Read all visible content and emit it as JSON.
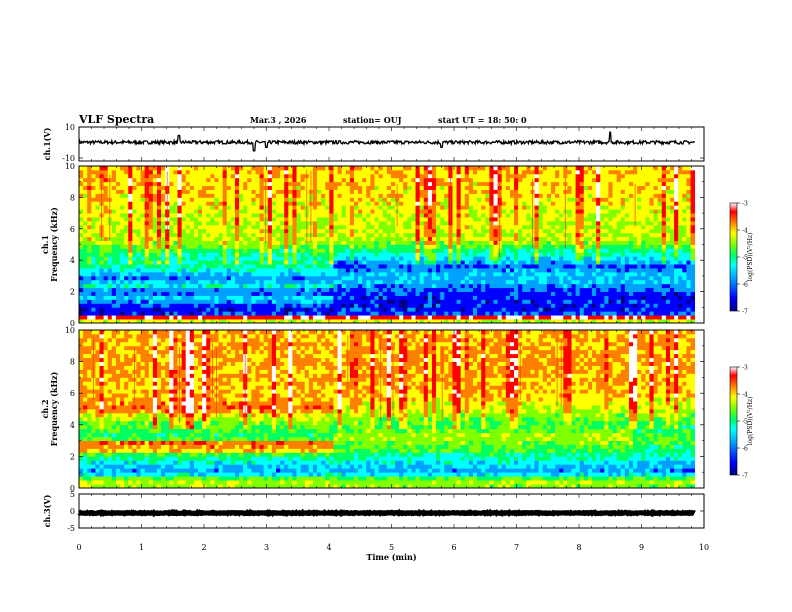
{
  "header": {
    "title": "VLF Spectra",
    "date": "Mar.3  , 2026",
    "station": "station= OUJ",
    "start_time": "start  UT  =   18: 50: 0"
  },
  "chart_data": [
    {
      "type": "line",
      "name": "ch1-waveform",
      "ylabel": "ch.1(V)",
      "ylim": [
        -10,
        10
      ],
      "y_ticks": [
        "10",
        "-10"
      ],
      "baseline": 1,
      "noise": 1.0,
      "spikes": [
        {
          "x": 1.6,
          "amp": 4
        },
        {
          "x": 2.8,
          "amp": -5
        },
        {
          "x": 3.0,
          "amp": -3
        },
        {
          "x": 5.8,
          "amp": -3
        },
        {
          "x": 8.5,
          "amp": 6
        }
      ]
    },
    {
      "type": "heatmap",
      "name": "ch1-spectrogram",
      "ylabel": "ch.1\nFrequency (kHz)",
      "ylim": [
        0,
        10
      ],
      "y_ticks": [
        "0",
        "2",
        "4",
        "6",
        "8",
        "10"
      ],
      "data_end_min": 9.85,
      "segments": [
        {
          "t_end": 4.05,
          "profile": [
            [
              0,
              0.5
            ],
            [
              0.4,
              0.95
            ],
            [
              0.6,
              0.12
            ],
            [
              1.0,
              0.1
            ],
            [
              1.6,
              0.3
            ],
            [
              2.0,
              0.15
            ],
            [
              2.4,
              0.35
            ],
            [
              2.8,
              0.2
            ],
            [
              3.3,
              0.3
            ],
            [
              3.7,
              0.45
            ],
            [
              4.2,
              0.35
            ],
            [
              4.8,
              0.5
            ],
            [
              5.3,
              0.6
            ],
            [
              6.5,
              0.62
            ],
            [
              8.0,
              0.68
            ],
            [
              10.0,
              0.7
            ]
          ]
        },
        {
          "t_end": 10.0,
          "profile": [
            [
              0,
              0.5
            ],
            [
              0.4,
              0.95
            ],
            [
              0.6,
              0.15
            ],
            [
              1.0,
              0.1
            ],
            [
              1.5,
              0.12
            ],
            [
              2.0,
              0.14
            ],
            [
              2.6,
              0.25
            ],
            [
              3.2,
              0.28
            ],
            [
              3.6,
              0.15
            ],
            [
              4.1,
              0.3
            ],
            [
              4.8,
              0.45
            ],
            [
              5.3,
              0.6
            ],
            [
              6.5,
              0.62
            ],
            [
              8.0,
              0.68
            ],
            [
              10.0,
              0.7
            ]
          ]
        }
      ],
      "colorbar": {
        "label": "log(PSD)(V²/Hz)",
        "ticks": [
          "-3",
          "-4",
          "-5",
          "-6",
          "-7"
        ]
      }
    },
    {
      "type": "heatmap",
      "name": "ch2-spectrogram",
      "ylabel": "ch.2\nFrequency (kHz)",
      "ylim": [
        0,
        10
      ],
      "y_ticks": [
        "0",
        "2",
        "4",
        "6",
        "8",
        "10"
      ],
      "data_end_min": 9.85,
      "segments": [
        {
          "t_end": 4.05,
          "profile": [
            [
              0,
              0.55
            ],
            [
              0.5,
              0.62
            ],
            [
              1.0,
              0.22
            ],
            [
              1.5,
              0.3
            ],
            [
              2.1,
              0.45
            ],
            [
              2.4,
              0.72
            ],
            [
              2.9,
              0.8
            ],
            [
              3.2,
              0.42
            ],
            [
              3.8,
              0.5
            ],
            [
              4.5,
              0.6
            ],
            [
              5.0,
              0.82
            ],
            [
              5.5,
              0.75
            ],
            [
              6.2,
              0.7
            ],
            [
              8.0,
              0.75
            ],
            [
              10.0,
              0.72
            ]
          ]
        },
        {
          "t_end": 8.85,
          "profile": [
            [
              0,
              0.55
            ],
            [
              0.5,
              0.6
            ],
            [
              1.0,
              0.22
            ],
            [
              1.5,
              0.3
            ],
            [
              2.0,
              0.4
            ],
            [
              2.5,
              0.5
            ],
            [
              3.0,
              0.58
            ],
            [
              3.5,
              0.58
            ],
            [
              4.0,
              0.45
            ],
            [
              4.5,
              0.55
            ],
            [
              5.0,
              0.62
            ],
            [
              6.0,
              0.7
            ],
            [
              8.0,
              0.75
            ],
            [
              10.0,
              0.72
            ]
          ]
        },
        {
          "t_end": 10.0,
          "profile": [
            [
              0,
              0.55
            ],
            [
              0.5,
              0.6
            ],
            [
              1.0,
              0.22
            ],
            [
              1.5,
              0.28
            ],
            [
              2.0,
              0.35
            ],
            [
              2.5,
              0.42
            ],
            [
              3.0,
              0.5
            ],
            [
              3.5,
              0.45
            ],
            [
              4.0,
              0.45
            ],
            [
              4.5,
              0.55
            ],
            [
              5.0,
              0.62
            ],
            [
              6.0,
              0.7
            ],
            [
              8.0,
              0.75
            ],
            [
              10.0,
              0.72
            ]
          ]
        }
      ],
      "colorbar": {
        "label": "log(PSD)(V²/Hz)",
        "ticks": [
          "-3",
          "-4",
          "-5",
          "-6",
          "-7"
        ]
      }
    },
    {
      "type": "line",
      "name": "ch3-waveform",
      "ylabel": "ch.3(V)",
      "ylim": [
        -5,
        5
      ],
      "y_ticks": [
        "5",
        "0",
        "-5"
      ],
      "baseline": -0.6,
      "noise": 0.15,
      "spikes": []
    }
  ],
  "time_axis": {
    "xlabel": "Time  (min)",
    "xlim": [
      0,
      10
    ],
    "ticks": [
      "0",
      "1",
      "2",
      "3",
      "4",
      "5",
      "6",
      "7",
      "8",
      "9",
      "10"
    ]
  },
  "colors": {
    "colormap": [
      "#000080",
      "#0000ff",
      "#00a0ff",
      "#00ffff",
      "#00ff60",
      "#80ff00",
      "#ffff00",
      "#ff8000",
      "#ff0000",
      "#ffffff"
    ]
  }
}
